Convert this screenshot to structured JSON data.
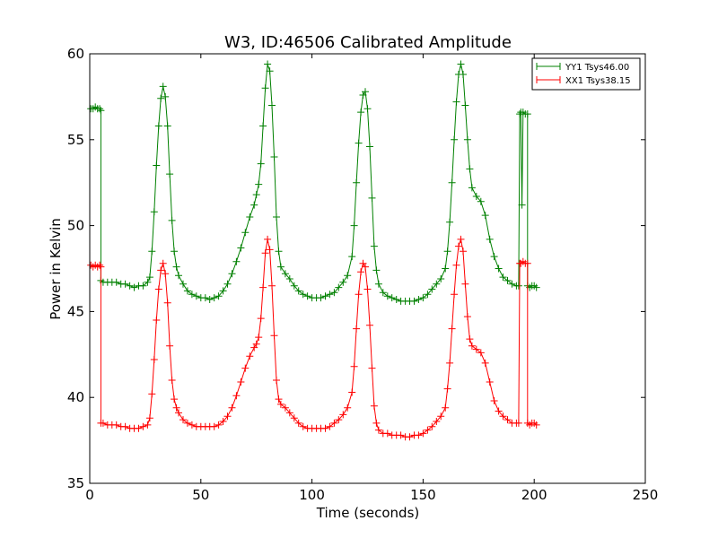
{
  "chart_data": {
    "type": "line",
    "title": "W3, ID:46506 Calibrated Amplitude",
    "xlabel": "Time (seconds)",
    "ylabel": "Power in Kelvin",
    "xlim": [
      0,
      250
    ],
    "ylim": [
      35,
      60
    ],
    "x_ticks": [
      "0",
      "50",
      "100",
      "150",
      "200",
      "250"
    ],
    "y_ticks": [
      "35",
      "40",
      "45",
      "50",
      "55",
      "60"
    ],
    "grid": false,
    "legend_position": "top-right",
    "marker": "plus",
    "series": [
      {
        "name": "YY1 Tsys46.00",
        "color": "#008000",
        "points": [
          [
            0.5,
            56.8
          ],
          [
            1.5,
            56.8
          ],
          [
            2.5,
            56.9
          ],
          [
            3.5,
            56.8
          ],
          [
            4.5,
            56.8
          ],
          [
            5,
            56.7
          ],
          [
            5,
            46.8
          ],
          [
            6,
            46.7
          ],
          [
            8,
            46.7
          ],
          [
            10,
            46.7
          ],
          [
            12,
            46.7
          ],
          [
            14,
            46.6
          ],
          [
            16,
            46.6
          ],
          [
            18,
            46.5
          ],
          [
            20,
            46.4
          ],
          [
            22,
            46.5
          ],
          [
            24,
            46.5
          ],
          [
            26,
            46.7
          ],
          [
            27,
            47.0
          ],
          [
            28,
            48.5
          ],
          [
            29,
            50.8
          ],
          [
            30,
            53.5
          ],
          [
            31,
            55.8
          ],
          [
            32,
            57.4
          ],
          [
            33,
            58.1
          ],
          [
            34,
            57.5
          ],
          [
            35,
            55.8
          ],
          [
            36,
            53.0
          ],
          [
            37,
            50.3
          ],
          [
            38,
            48.5
          ],
          [
            39,
            47.6
          ],
          [
            40,
            47.1
          ],
          [
            42,
            46.6
          ],
          [
            44,
            46.2
          ],
          [
            46,
            46.0
          ],
          [
            48,
            45.9
          ],
          [
            50,
            45.8
          ],
          [
            52,
            45.8
          ],
          [
            54,
            45.7
          ],
          [
            56,
            45.8
          ],
          [
            58,
            45.9
          ],
          [
            60,
            46.2
          ],
          [
            62,
            46.6
          ],
          [
            64,
            47.2
          ],
          [
            66,
            47.9
          ],
          [
            68,
            48.7
          ],
          [
            70,
            49.6
          ],
          [
            72,
            50.5
          ],
          [
            74,
            51.2
          ],
          [
            75,
            51.8
          ],
          [
            76,
            52.4
          ],
          [
            77,
            53.6
          ],
          [
            78,
            55.8
          ],
          [
            79,
            58.0
          ],
          [
            80,
            59.4
          ],
          [
            81,
            59.0
          ],
          [
            82,
            57.0
          ],
          [
            83,
            54.0
          ],
          [
            84,
            50.5
          ],
          [
            85,
            48.5
          ],
          [
            86,
            47.6
          ],
          [
            88,
            47.2
          ],
          [
            90,
            46.9
          ],
          [
            92,
            46.5
          ],
          [
            94,
            46.2
          ],
          [
            96,
            46.0
          ],
          [
            98,
            45.9
          ],
          [
            100,
            45.8
          ],
          [
            102,
            45.8
          ],
          [
            104,
            45.8
          ],
          [
            106,
            45.9
          ],
          [
            108,
            46.0
          ],
          [
            110,
            46.1
          ],
          [
            112,
            46.4
          ],
          [
            114,
            46.7
          ],
          [
            116,
            47.1
          ],
          [
            118,
            48.2
          ],
          [
            119,
            50.0
          ],
          [
            120,
            52.5
          ],
          [
            121,
            54.8
          ],
          [
            122,
            56.6
          ],
          [
            123,
            57.6
          ],
          [
            124,
            57.8
          ],
          [
            125,
            56.8
          ],
          [
            126,
            54.6
          ],
          [
            127,
            51.6
          ],
          [
            128,
            48.8
          ],
          [
            129,
            47.4
          ],
          [
            130,
            46.6
          ],
          [
            132,
            46.1
          ],
          [
            134,
            45.9
          ],
          [
            136,
            45.8
          ],
          [
            138,
            45.7
          ],
          [
            140,
            45.6
          ],
          [
            142,
            45.6
          ],
          [
            144,
            45.6
          ],
          [
            146,
            45.6
          ],
          [
            148,
            45.7
          ],
          [
            150,
            45.8
          ],
          [
            152,
            46.0
          ],
          [
            154,
            46.3
          ],
          [
            156,
            46.6
          ],
          [
            158,
            46.9
          ],
          [
            160,
            47.5
          ],
          [
            161,
            48.5
          ],
          [
            162,
            50.2
          ],
          [
            163,
            52.5
          ],
          [
            164,
            55.0
          ],
          [
            165,
            57.2
          ],
          [
            166,
            58.8
          ],
          [
            167,
            59.4
          ],
          [
            168,
            58.8
          ],
          [
            169,
            57.0
          ],
          [
            170,
            55.0
          ],
          [
            171,
            53.3
          ],
          [
            172,
            52.2
          ],
          [
            174,
            51.7
          ],
          [
            176,
            51.4
          ],
          [
            178,
            50.6
          ],
          [
            180,
            49.2
          ],
          [
            182,
            48.2
          ],
          [
            184,
            47.5
          ],
          [
            186,
            47.0
          ],
          [
            188,
            46.8
          ],
          [
            190,
            46.6
          ],
          [
            192,
            46.5
          ],
          [
            193,
            46.5
          ],
          [
            193.5,
            56.5
          ],
          [
            194,
            56.6
          ],
          [
            194.5,
            51.2
          ],
          [
            195,
            56.6
          ],
          [
            196,
            56.5
          ],
          [
            197,
            56.5
          ],
          [
            197,
            46.5
          ],
          [
            198,
            46.4
          ],
          [
            199,
            46.5
          ],
          [
            200,
            46.5
          ],
          [
            201,
            46.4
          ]
        ]
      },
      {
        "name": "XX1 Tsys38.15",
        "color": "#ff0000",
        "points": [
          [
            0.5,
            47.7
          ],
          [
            1.5,
            47.6
          ],
          [
            2.5,
            47.7
          ],
          [
            3.5,
            47.6
          ],
          [
            4.5,
            47.7
          ],
          [
            5,
            47.6
          ],
          [
            5,
            38.5
          ],
          [
            6,
            38.5
          ],
          [
            8,
            38.4
          ],
          [
            10,
            38.4
          ],
          [
            12,
            38.4
          ],
          [
            14,
            38.3
          ],
          [
            16,
            38.3
          ],
          [
            18,
            38.2
          ],
          [
            20,
            38.2
          ],
          [
            22,
            38.2
          ],
          [
            24,
            38.3
          ],
          [
            26,
            38.4
          ],
          [
            27,
            38.8
          ],
          [
            28,
            40.2
          ],
          [
            29,
            42.2
          ],
          [
            30,
            44.5
          ],
          [
            31,
            46.3
          ],
          [
            32,
            47.4
          ],
          [
            33,
            47.8
          ],
          [
            34,
            47.2
          ],
          [
            35,
            45.5
          ],
          [
            36,
            43.0
          ],
          [
            37,
            41.0
          ],
          [
            38,
            39.9
          ],
          [
            39,
            39.4
          ],
          [
            40,
            39.1
          ],
          [
            42,
            38.7
          ],
          [
            44,
            38.5
          ],
          [
            46,
            38.4
          ],
          [
            48,
            38.3
          ],
          [
            50,
            38.3
          ],
          [
            52,
            38.3
          ],
          [
            54,
            38.3
          ],
          [
            56,
            38.3
          ],
          [
            58,
            38.4
          ],
          [
            60,
            38.6
          ],
          [
            62,
            38.9
          ],
          [
            64,
            39.4
          ],
          [
            66,
            40.1
          ],
          [
            68,
            40.9
          ],
          [
            70,
            41.7
          ],
          [
            72,
            42.4
          ],
          [
            74,
            42.9
          ],
          [
            75,
            43.1
          ],
          [
            76,
            43.5
          ],
          [
            77,
            44.6
          ],
          [
            78,
            46.4
          ],
          [
            79,
            48.4
          ],
          [
            80,
            49.2
          ],
          [
            81,
            48.6
          ],
          [
            82,
            46.5
          ],
          [
            83,
            43.6
          ],
          [
            84,
            41.0
          ],
          [
            85,
            39.9
          ],
          [
            86,
            39.6
          ],
          [
            88,
            39.4
          ],
          [
            90,
            39.1
          ],
          [
            92,
            38.8
          ],
          [
            94,
            38.5
          ],
          [
            96,
            38.3
          ],
          [
            98,
            38.2
          ],
          [
            100,
            38.2
          ],
          [
            102,
            38.2
          ],
          [
            104,
            38.2
          ],
          [
            106,
            38.2
          ],
          [
            108,
            38.3
          ],
          [
            110,
            38.5
          ],
          [
            112,
            38.7
          ],
          [
            114,
            39.0
          ],
          [
            116,
            39.4
          ],
          [
            118,
            40.3
          ],
          [
            119,
            41.8
          ],
          [
            120,
            44.0
          ],
          [
            121,
            46.0
          ],
          [
            122,
            47.3
          ],
          [
            123,
            47.8
          ],
          [
            124,
            47.6
          ],
          [
            125,
            46.3
          ],
          [
            126,
            44.2
          ],
          [
            127,
            41.7
          ],
          [
            128,
            39.5
          ],
          [
            129,
            38.5
          ],
          [
            130,
            38.1
          ],
          [
            132,
            37.9
          ],
          [
            134,
            37.9
          ],
          [
            136,
            37.8
          ],
          [
            138,
            37.8
          ],
          [
            140,
            37.8
          ],
          [
            142,
            37.7
          ],
          [
            144,
            37.7
          ],
          [
            146,
            37.8
          ],
          [
            148,
            37.8
          ],
          [
            150,
            37.9
          ],
          [
            152,
            38.1
          ],
          [
            154,
            38.3
          ],
          [
            156,
            38.6
          ],
          [
            158,
            38.9
          ],
          [
            160,
            39.4
          ],
          [
            161,
            40.5
          ],
          [
            162,
            42.0
          ],
          [
            163,
            44.0
          ],
          [
            164,
            46.0
          ],
          [
            165,
            47.7
          ],
          [
            166,
            48.8
          ],
          [
            167,
            49.2
          ],
          [
            168,
            48.5
          ],
          [
            169,
            46.6
          ],
          [
            170,
            44.7
          ],
          [
            171,
            43.4
          ],
          [
            172,
            43.0
          ],
          [
            174,
            42.8
          ],
          [
            176,
            42.6
          ],
          [
            178,
            42.0
          ],
          [
            180,
            40.9
          ],
          [
            182,
            39.8
          ],
          [
            184,
            39.2
          ],
          [
            186,
            38.9
          ],
          [
            188,
            38.7
          ],
          [
            190,
            38.5
          ],
          [
            192,
            38.5
          ],
          [
            193,
            38.5
          ],
          [
            193.5,
            47.8
          ],
          [
            194,
            47.8
          ],
          [
            195,
            47.9
          ],
          [
            196,
            47.8
          ],
          [
            197,
            47.8
          ],
          [
            197,
            38.5
          ],
          [
            198,
            38.4
          ],
          [
            199,
            38.5
          ],
          [
            200,
            38.5
          ],
          [
            201,
            38.4
          ]
        ]
      }
    ]
  }
}
